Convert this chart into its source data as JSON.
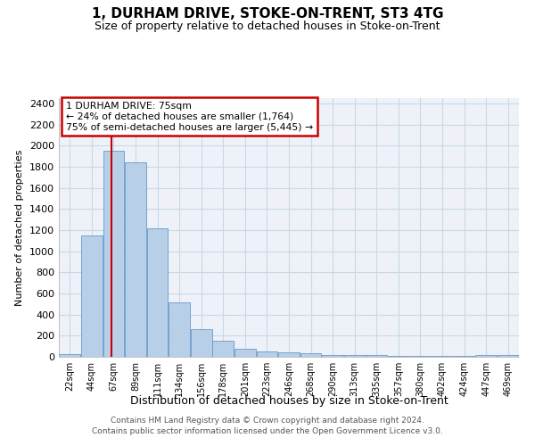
{
  "title": "1, DURHAM DRIVE, STOKE-ON-TRENT, ST3 4TG",
  "subtitle": "Size of property relative to detached houses in Stoke-on-Trent",
  "xlabel": "Distribution of detached houses by size in Stoke-on-Trent",
  "ylabel": "Number of detached properties",
  "categories": [
    "22sqm",
    "44sqm",
    "67sqm",
    "89sqm",
    "111sqm",
    "134sqm",
    "156sqm",
    "178sqm",
    "201sqm",
    "223sqm",
    "246sqm",
    "268sqm",
    "290sqm",
    "313sqm",
    "335sqm",
    "357sqm",
    "380sqm",
    "402sqm",
    "424sqm",
    "447sqm",
    "469sqm"
  ],
  "values": [
    25,
    1150,
    1950,
    1840,
    1220,
    515,
    265,
    155,
    75,
    50,
    40,
    35,
    20,
    15,
    13,
    10,
    8,
    6,
    5,
    13,
    13
  ],
  "bar_color": "#b8cfe8",
  "bar_edge_color": "#6699cc",
  "annotation_line_color": "#cc0000",
  "annotation_box_text": "1 DURHAM DRIVE: 75sqm\n← 24% of detached houses are smaller (1,764)\n75% of semi-detached houses are larger (5,445) →",
  "annotation_box_color": "#cc0000",
  "ylim": [
    0,
    2450
  ],
  "yticks": [
    0,
    200,
    400,
    600,
    800,
    1000,
    1200,
    1400,
    1600,
    1800,
    2000,
    2200,
    2400
  ],
  "grid_color": "#c8d8e8",
  "bg_color": "#eef2f8",
  "footer_line1": "Contains HM Land Registry data © Crown copyright and database right 2024.",
  "footer_line2": "Contains public sector information licensed under the Open Government Licence v3.0."
}
